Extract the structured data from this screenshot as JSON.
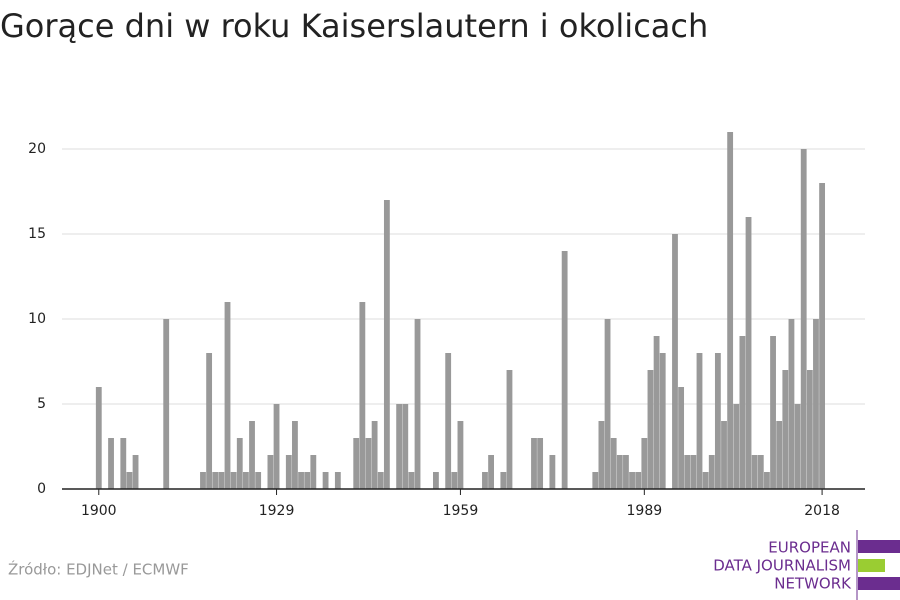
{
  "chart_data": {
    "type": "bar",
    "title": "Gorące dni w roku Kaiserslautern i okolicach",
    "source": "Źródło: EDJNet / ECMWF",
    "logo": [
      "EUROPEAN",
      "DATA JOURNALISM",
      "NETWORK"
    ],
    "color": "#999999",
    "x": [
      1900,
      1901,
      1902,
      1903,
      1904,
      1905,
      1906,
      1907,
      1908,
      1909,
      1910,
      1911,
      1912,
      1913,
      1914,
      1915,
      1916,
      1917,
      1918,
      1919,
      1920,
      1921,
      1922,
      1923,
      1924,
      1925,
      1926,
      1927,
      1928,
      1929,
      1930,
      1931,
      1932,
      1933,
      1934,
      1935,
      1936,
      1937,
      1938,
      1939,
      1940,
      1941,
      1942,
      1943,
      1944,
      1945,
      1946,
      1947,
      1948,
      1949,
      1950,
      1951,
      1952,
      1953,
      1954,
      1955,
      1956,
      1957,
      1958,
      1959,
      1960,
      1961,
      1962,
      1963,
      1964,
      1965,
      1966,
      1967,
      1968,
      1969,
      1970,
      1971,
      1972,
      1973,
      1974,
      1975,
      1976,
      1977,
      1978,
      1979,
      1980,
      1981,
      1982,
      1983,
      1984,
      1985,
      1986,
      1987,
      1988,
      1989,
      1990,
      1991,
      1992,
      1993,
      1994,
      1995,
      1996,
      1997,
      1998,
      1999,
      2000,
      2001,
      2002,
      2003,
      2004,
      2005,
      2006,
      2007,
      2008,
      2009,
      2010,
      2011,
      2012,
      2013,
      2014,
      2015,
      2016,
      2017,
      2018
    ],
    "values": [
      6,
      0,
      3,
      0,
      3,
      1,
      2,
      0,
      0,
      0,
      0,
      10,
      0,
      0,
      0,
      0,
      0,
      1,
      8,
      1,
      1,
      11,
      1,
      3,
      1,
      4,
      1,
      0,
      2,
      5,
      0,
      2,
      4,
      1,
      1,
      2,
      0,
      1,
      0,
      1,
      0,
      0,
      3,
      11,
      3,
      4,
      1,
      17,
      0,
      5,
      5,
      1,
      10,
      0,
      0,
      1,
      0,
      8,
      1,
      4,
      0,
      0,
      0,
      1,
      2,
      0,
      1,
      7,
      0,
      0,
      0,
      3,
      3,
      0,
      2,
      0,
      14,
      0,
      0,
      0,
      0,
      1,
      4,
      10,
      3,
      2,
      2,
      1,
      1,
      3,
      7,
      9,
      8,
      0,
      15,
      6,
      2,
      2,
      8,
      1,
      2,
      8,
      4,
      21,
      5,
      9,
      16,
      2,
      2,
      1,
      9,
      4,
      7,
      10,
      5,
      20,
      7,
      10,
      18
    ],
    "xlim": [
      1894,
      2025
    ],
    "xticks": [
      1900,
      1929,
      1959,
      1989,
      2018
    ],
    "ylim": [
      0,
      22
    ],
    "yticks": [
      0,
      5,
      10,
      15,
      20
    ],
    "grid": true
  }
}
